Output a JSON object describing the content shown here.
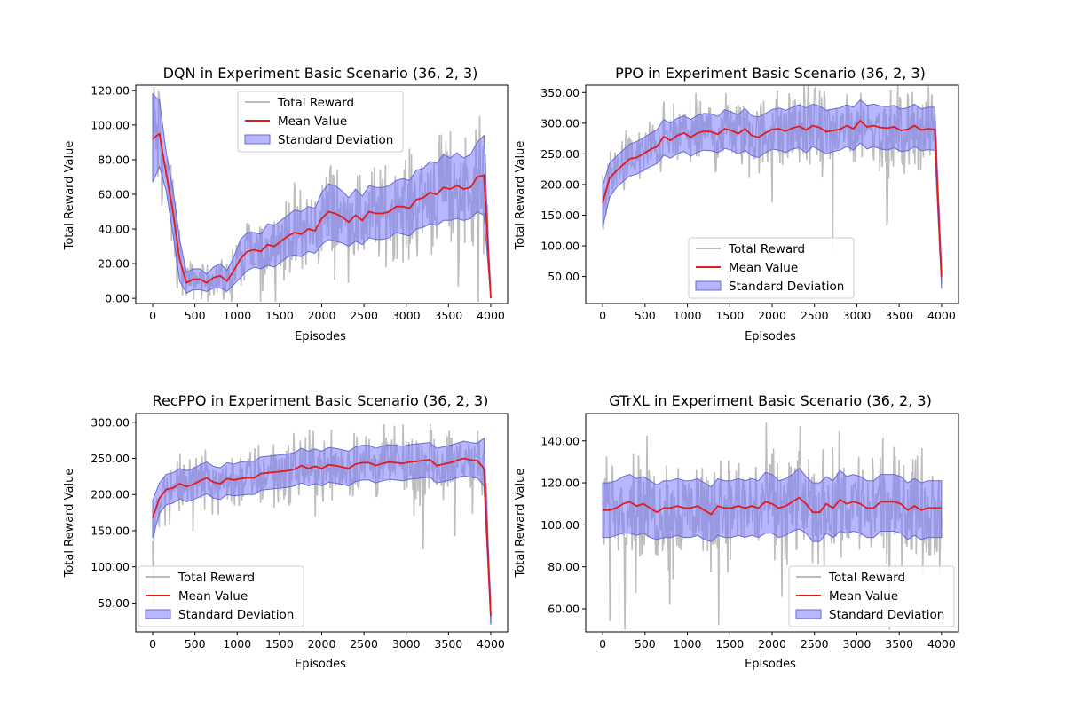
{
  "figure": {
    "legend_entries": [
      "Total Reward",
      "Mean Value",
      "Standard Deviation"
    ],
    "colors": {
      "raw": "#bdbdbd",
      "mean": "#e41a1c",
      "std_fill": "#7b7bff",
      "std_edge": "#6a6ad0"
    }
  },
  "chart_data": [
    {
      "type": "line",
      "title": "DQN in Experiment Basic Scenario (36, 2, 3)",
      "xlabel": "Episodes",
      "ylabel": "Total Reward Value",
      "xlim": [
        -200,
        4200
      ],
      "ylim": [
        -3,
        123
      ],
      "xticks": [
        0,
        500,
        1000,
        1500,
        2000,
        2500,
        3000,
        3500,
        4000
      ],
      "yticks": [
        0,
        20,
        40,
        60,
        80,
        100,
        120
      ],
      "ytick_labels": [
        "0.00",
        "20.00",
        "40.00",
        "60.00",
        "80.00",
        "100.00",
        "120.00"
      ],
      "legend_loc": "upper center",
      "series": [
        {
          "name": "Mean Value",
          "x": [
            0,
            80,
            160,
            240,
            320,
            400,
            480,
            560,
            640,
            720,
            800,
            880,
            960,
            1040,
            1120,
            1200,
            1280,
            1360,
            1440,
            1520,
            1600,
            1680,
            1760,
            1840,
            1920,
            2000,
            2080,
            2160,
            2240,
            2320,
            2400,
            2480,
            2560,
            2640,
            2720,
            2800,
            2880,
            2960,
            3040,
            3120,
            3200,
            3280,
            3360,
            3440,
            3520,
            3600,
            3680,
            3760,
            3840,
            3920,
            4000
          ],
          "y": [
            92,
            95,
            72,
            50,
            22,
            9,
            11,
            11,
            9,
            12,
            13,
            10,
            16,
            23,
            27,
            28,
            27,
            31,
            30,
            33,
            36,
            38,
            37,
            40,
            39,
            46,
            50,
            49,
            47,
            44,
            48,
            45,
            50,
            49,
            49,
            50,
            53,
            53,
            52,
            57,
            58,
            61,
            60,
            64,
            63,
            65,
            63,
            64,
            70,
            71,
            0
          ]
        },
        {
          "name": "Standard Deviation",
          "lower": [
            67,
            76,
            62,
            37,
            10,
            3,
            5,
            5,
            4,
            6,
            6,
            4,
            8,
            12,
            16,
            18,
            17,
            19,
            18,
            21,
            24,
            25,
            24,
            27,
            26,
            31,
            34,
            33,
            32,
            30,
            33,
            31,
            35,
            34,
            34,
            35,
            38,
            37,
            36,
            40,
            41,
            43,
            42,
            45,
            45,
            46,
            45,
            46,
            50,
            48,
            0
          ],
          "upper": [
            118,
            114,
            84,
            63,
            34,
            15,
            17,
            17,
            14,
            18,
            20,
            16,
            24,
            34,
            38,
            38,
            37,
            43,
            42,
            45,
            48,
            51,
            50,
            53,
            52,
            61,
            66,
            65,
            62,
            58,
            63,
            59,
            65,
            64,
            64,
            65,
            68,
            69,
            68,
            74,
            75,
            79,
            78,
            83,
            81,
            84,
            81,
            83,
            90,
            94,
            0
          ]
        }
      ]
    },
    {
      "type": "line",
      "title": "PPO in Experiment Basic Scenario (36, 2, 3)",
      "xlabel": "Episodes",
      "ylabel": "Total Reward Value",
      "xlim": [
        -200,
        4200
      ],
      "ylim": [
        6,
        362
      ],
      "xticks": [
        0,
        500,
        1000,
        1500,
        2000,
        2500,
        3000,
        3500,
        4000
      ],
      "yticks": [
        50,
        100,
        150,
        200,
        250,
        300,
        350
      ],
      "ytick_labels": [
        "50.00",
        "100.00",
        "150.00",
        "200.00",
        "250.00",
        "300.00",
        "350.00"
      ],
      "legend_loc": "lower center",
      "series": [
        {
          "name": "Mean Value",
          "x": [
            0,
            80,
            160,
            240,
            320,
            400,
            480,
            560,
            640,
            720,
            800,
            880,
            960,
            1040,
            1120,
            1200,
            1280,
            1360,
            1440,
            1520,
            1600,
            1680,
            1760,
            1840,
            1920,
            2000,
            2080,
            2160,
            2240,
            2320,
            2400,
            2480,
            2560,
            2640,
            2720,
            2800,
            2880,
            2960,
            3040,
            3120,
            3200,
            3280,
            3360,
            3440,
            3520,
            3600,
            3680,
            3760,
            3840,
            3920,
            4000
          ],
          "y": [
            170,
            210,
            222,
            232,
            242,
            244,
            250,
            257,
            262,
            278,
            272,
            280,
            284,
            277,
            284,
            287,
            286,
            282,
            291,
            288,
            283,
            291,
            280,
            277,
            284,
            290,
            291,
            287,
            292,
            295,
            289,
            296,
            293,
            286,
            288,
            290,
            296,
            291,
            304,
            294,
            296,
            293,
            292,
            294,
            288,
            290,
            296,
            289,
            291,
            290,
            50
          ]
        },
        {
          "name": "Standard Deviation",
          "lower": [
            130,
            178,
            195,
            205,
            214,
            217,
            223,
            229,
            234,
            248,
            243,
            250,
            254,
            246,
            253,
            256,
            255,
            252,
            259,
            256,
            250,
            256,
            247,
            244,
            252,
            258,
            256,
            252,
            258,
            260,
            252,
            262,
            256,
            250,
            254,
            256,
            262,
            256,
            268,
            258,
            262,
            258,
            256,
            260,
            254,
            255,
            262,
            255,
            257,
            256,
            30
          ],
          "upper": [
            198,
            234,
            246,
            256,
            266,
            270,
            276,
            283,
            289,
            306,
            300,
            308,
            312,
            306,
            313,
            316,
            315,
            311,
            322,
            318,
            314,
            324,
            312,
            310,
            316,
            322,
            325,
            321,
            326,
            330,
            325,
            331,
            328,
            321,
            323,
            325,
            330,
            326,
            338,
            329,
            331,
            328,
            327,
            329,
            323,
            325,
            331,
            323,
            326,
            326,
            60
          ]
        }
      ]
    },
    {
      "type": "line",
      "title": "RecPPO in Experiment Basic Scenario (36, 2, 3)",
      "xlabel": "Episodes",
      "ylabel": "Total Reward Value",
      "xlim": [
        -200,
        4200
      ],
      "ylim": [
        10,
        312
      ],
      "xticks": [
        0,
        500,
        1000,
        1500,
        2000,
        2500,
        3000,
        3500,
        4000
      ],
      "yticks": [
        50,
        100,
        150,
        200,
        250,
        300
      ],
      "ytick_labels": [
        "50.00",
        "100.00",
        "150.00",
        "200.00",
        "250.00",
        "300.00"
      ],
      "legend_loc": "lower left",
      "series": [
        {
          "name": "Mean Value",
          "x": [
            0,
            80,
            160,
            240,
            320,
            400,
            480,
            560,
            640,
            720,
            800,
            880,
            960,
            1040,
            1120,
            1200,
            1280,
            1360,
            1440,
            1520,
            1600,
            1680,
            1760,
            1840,
            1920,
            2000,
            2080,
            2160,
            2240,
            2320,
            2400,
            2480,
            2560,
            2640,
            2720,
            2800,
            2880,
            2960,
            3040,
            3120,
            3200,
            3280,
            3360,
            3440,
            3520,
            3600,
            3680,
            3760,
            3840,
            3920,
            4000
          ],
          "y": [
            168,
            195,
            207,
            209,
            215,
            211,
            214,
            219,
            223,
            217,
            215,
            222,
            220,
            222,
            223,
            223,
            229,
            230,
            231,
            232,
            233,
            235,
            240,
            236,
            239,
            236,
            241,
            240,
            238,
            236,
            242,
            244,
            244,
            240,
            243,
            245,
            244,
            243,
            245,
            246,
            247,
            248,
            240,
            242,
            244,
            247,
            250,
            248,
            247,
            236,
            32
          ]
        },
        {
          "name": "Standard Deviation",
          "lower": [
            140,
            174,
            186,
            188,
            194,
            190,
            193,
            197,
            201,
            195,
            193,
            200,
            198,
            199,
            200,
            200,
            206,
            207,
            208,
            209,
            210,
            212,
            216,
            212,
            215,
            212,
            217,
            216,
            214,
            212,
            218,
            220,
            220,
            216,
            219,
            221,
            220,
            219,
            221,
            222,
            223,
            224,
            216,
            218,
            220,
            223,
            226,
            224,
            223,
            212,
            20
          ],
          "upper": [
            192,
            216,
            228,
            230,
            236,
            233,
            236,
            241,
            245,
            239,
            237,
            244,
            242,
            245,
            246,
            246,
            252,
            253,
            254,
            255,
            256,
            258,
            264,
            260,
            263,
            260,
            265,
            264,
            262,
            260,
            266,
            268,
            268,
            264,
            267,
            269,
            268,
            267,
            269,
            270,
            271,
            272,
            264,
            266,
            268,
            271,
            274,
            272,
            271,
            278,
            45
          ]
        }
      ]
    },
    {
      "type": "line",
      "title": "GTrXL in Experiment Basic Scenario (36, 2, 3)",
      "xlabel": "Episodes",
      "ylabel": "Total Reward Value",
      "xlim": [
        -200,
        4200
      ],
      "ylim": [
        49,
        153
      ],
      "xticks": [
        0,
        500,
        1000,
        1500,
        2000,
        2500,
        3000,
        3500,
        4000
      ],
      "yticks": [
        60,
        80,
        100,
        120,
        140
      ],
      "ytick_labels": [
        "60.00",
        "80.00",
        "100.00",
        "120.00",
        "140.00"
      ],
      "legend_loc": "lower right",
      "series": [
        {
          "name": "Mean Value",
          "x": [
            0,
            80,
            160,
            240,
            320,
            400,
            480,
            560,
            640,
            720,
            800,
            880,
            960,
            1040,
            1120,
            1200,
            1280,
            1360,
            1440,
            1520,
            1600,
            1680,
            1760,
            1840,
            1920,
            2000,
            2080,
            2160,
            2240,
            2320,
            2400,
            2480,
            2560,
            2640,
            2720,
            2800,
            2880,
            2960,
            3040,
            3120,
            3200,
            3280,
            3360,
            3440,
            3520,
            3600,
            3680,
            3760,
            3840,
            3920,
            4000
          ],
          "y": [
            107,
            107,
            108,
            110,
            111,
            109,
            110,
            108,
            106,
            108,
            108,
            109,
            108,
            108,
            109,
            107,
            105,
            109,
            108,
            108,
            109,
            108,
            109,
            108,
            111,
            110,
            108,
            109,
            111,
            113,
            110,
            106,
            106,
            110,
            108,
            112,
            110,
            111,
            110,
            108,
            108,
            111,
            111,
            111,
            110,
            107,
            109,
            107,
            108,
            108,
            108
          ]
        },
        {
          "name": "Standard Deviation",
          "lower": [
            94,
            94,
            95,
            96,
            96,
            95,
            96,
            94,
            93,
            94,
            94,
            95,
            94,
            94,
            95,
            93,
            92,
            95,
            94,
            94,
            95,
            94,
            95,
            94,
            96,
            96,
            94,
            95,
            97,
            98,
            96,
            92,
            92,
            96,
            94,
            97,
            96,
            97,
            96,
            94,
            94,
            97,
            97,
            97,
            96,
            93,
            95,
            93,
            94,
            94,
            94
          ],
          "upper": [
            120,
            120,
            121,
            123,
            124,
            122,
            123,
            121,
            119,
            121,
            121,
            122,
            121,
            121,
            122,
            120,
            118,
            122,
            121,
            121,
            122,
            121,
            122,
            121,
            125,
            124,
            121,
            122,
            124,
            127,
            123,
            120,
            120,
            123,
            121,
            126,
            123,
            124,
            123,
            121,
            121,
            124,
            124,
            124,
            123,
            120,
            122,
            120,
            121,
            121,
            121
          ]
        }
      ]
    }
  ]
}
